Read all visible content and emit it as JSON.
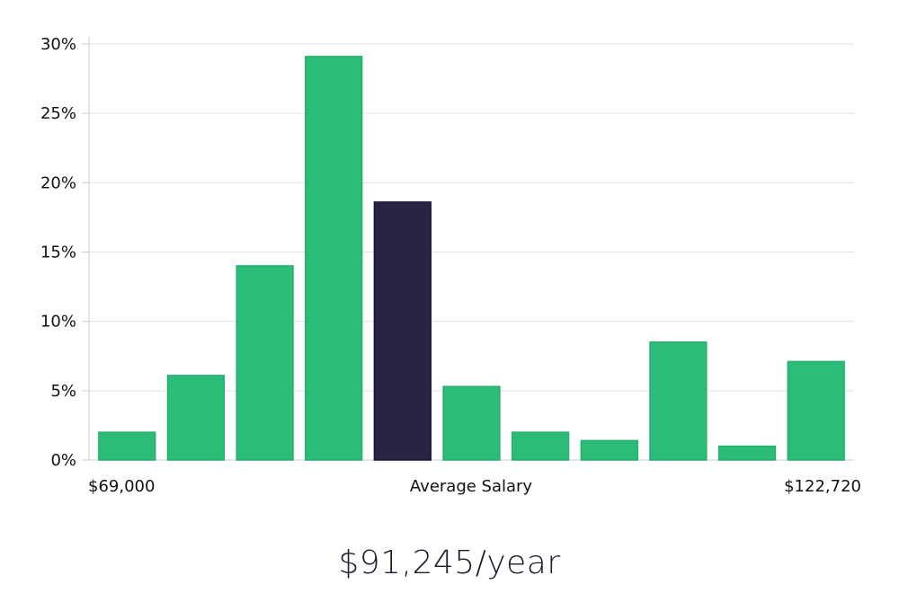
{
  "chart_data": {
    "type": "bar",
    "values": [
      2.0,
      6.1,
      14.0,
      29.1,
      18.6,
      5.3,
      2.0,
      1.4,
      8.5,
      1.0,
      7.1
    ],
    "highlight_index": 4,
    "ylim": [
      0,
      30
    ],
    "y_ticks": [
      0,
      5,
      10,
      15,
      20,
      25,
      30
    ],
    "y_tick_labels": [
      "0%",
      "5%",
      "10%",
      "15%",
      "20%",
      "25%",
      "30%"
    ],
    "x_min_label": "$69,000",
    "x_center_label": "Average Salary",
    "x_max_label": "$122,720",
    "grid": true,
    "colors": {
      "bar": "#2bbd77",
      "bar_border": "#25b06d",
      "highlight": "#272445",
      "grid": "#e2e2e2",
      "axis": "#cccccc"
    }
  },
  "salary_readout": "$91,245/year"
}
